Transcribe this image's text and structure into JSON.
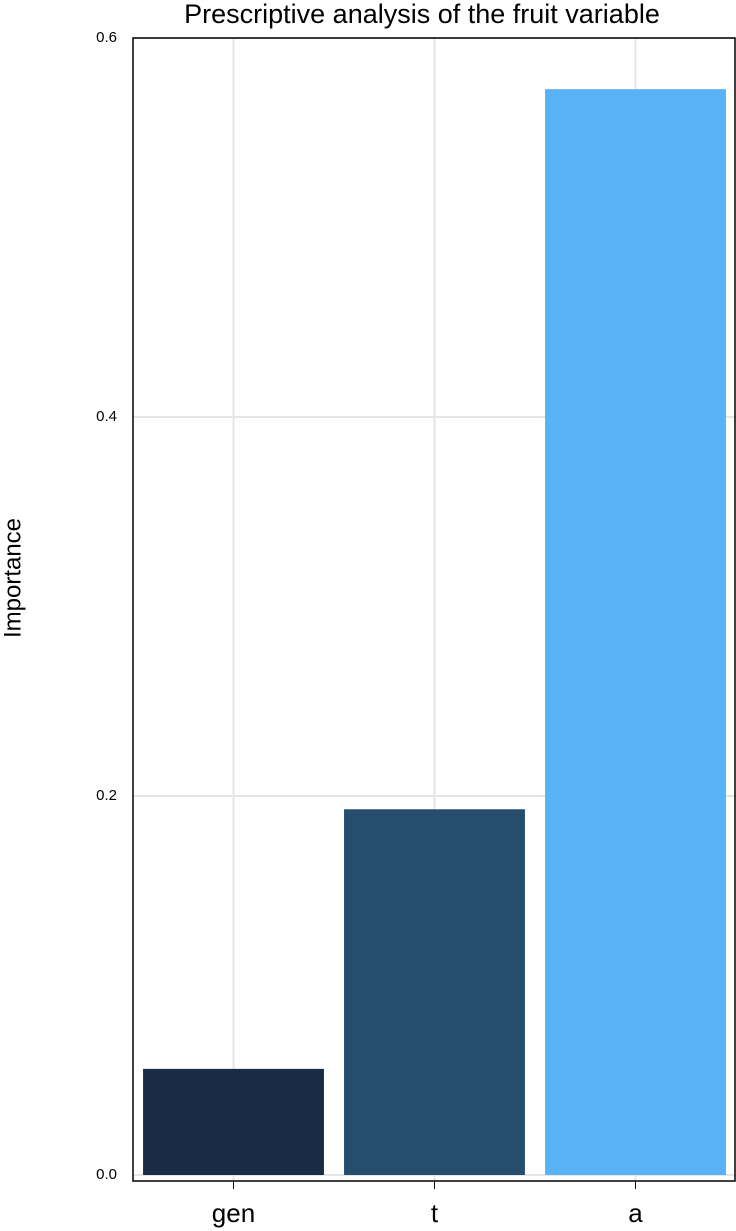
{
  "chart_data": {
    "type": "bar",
    "title": "Prescriptive analysis of the fruit variable",
    "y_label": "Importance",
    "categories": [
      "gen",
      "t",
      "a"
    ],
    "series": [
      {
        "name": "Importance",
        "colors": [
          "#182d45",
          "#264c6e",
          "#59b2f6"
        ],
        "values": [
          0.056,
          0.193,
          0.573
        ]
      }
    ],
    "ylim": [
      0,
      0.6
    ],
    "yticks": [
      {
        "value": 0,
        "label": "0.0"
      },
      {
        "value": 0.2,
        "label": "0.2"
      },
      {
        "value": 0.4,
        "label": "0.4"
      },
      {
        "value": 0.6,
        "label": "0.6"
      }
    ],
    "grid": true
  }
}
